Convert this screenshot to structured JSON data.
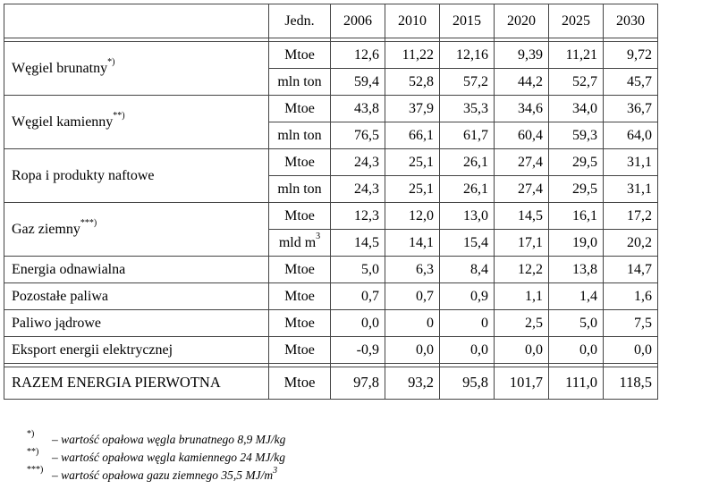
{
  "header": {
    "unit": "Jedn.",
    "years": [
      "2006",
      "2010",
      "2015",
      "2020",
      "2025",
      "2030"
    ]
  },
  "rows": [
    {
      "label": "Węgiel brunatny",
      "mark": "*)",
      "units": [
        {
          "unit": "Mtoe",
          "sup": "",
          "values": [
            "12,6",
            "11,22",
            "12,16",
            "9,39",
            "11,21",
            "9,72"
          ]
        },
        {
          "unit": "mln ton",
          "sup": "",
          "values": [
            "59,4",
            "52,8",
            "57,2",
            "44,2",
            "52,7",
            "45,7"
          ]
        }
      ]
    },
    {
      "label": "Węgiel kamienny",
      "mark": "**)",
      "units": [
        {
          "unit": "Mtoe",
          "sup": "",
          "values": [
            "43,8",
            "37,9",
            "35,3",
            "34,6",
            "34,0",
            "36,7"
          ]
        },
        {
          "unit": "mln ton",
          "sup": "",
          "values": [
            "76,5",
            "66,1",
            "61,7",
            "60,4",
            "59,3",
            "64,0"
          ]
        }
      ]
    },
    {
      "label": "Ropa i produkty naftowe",
      "mark": "",
      "units": [
        {
          "unit": "Mtoe",
          "sup": "",
          "values": [
            "24,3",
            "25,1",
            "26,1",
            "27,4",
            "29,5",
            "31,1"
          ]
        },
        {
          "unit": "mln ton",
          "sup": "",
          "values": [
            "24,3",
            "25,1",
            "26,1",
            "27,4",
            "29,5",
            "31,1"
          ]
        }
      ]
    },
    {
      "label": "Gaz ziemny",
      "mark": "***)",
      "units": [
        {
          "unit": "Mtoe",
          "sup": "",
          "values": [
            "12,3",
            "12,0",
            "13,0",
            "14,5",
            "16,1",
            "17,2"
          ]
        },
        {
          "unit": "mld m",
          "sup": "3",
          "values": [
            "14,5",
            "14,1",
            "15,4",
            "17,1",
            "19,0",
            "20,2"
          ]
        }
      ]
    },
    {
      "label": "Energia odnawialna",
      "mark": "",
      "units": [
        {
          "unit": "Mtoe",
          "sup": "",
          "values": [
            "5,0",
            "6,3",
            "8,4",
            "12,2",
            "13,8",
            "14,7"
          ]
        }
      ]
    },
    {
      "label": "Pozostałe paliwa",
      "mark": "",
      "units": [
        {
          "unit": "Mtoe",
          "sup": "",
          "values": [
            "0,7",
            "0,7",
            "0,9",
            "1,1",
            "1,4",
            "1,6"
          ]
        }
      ]
    },
    {
      "label": "Paliwo jądrowe",
      "mark": "",
      "units": [
        {
          "unit": "Mtoe",
          "sup": "",
          "values": [
            "0,0",
            "0",
            "0",
            "2,5",
            "5,0",
            "7,5"
          ]
        }
      ]
    },
    {
      "label": "Eksport energii elektrycznej",
      "mark": "",
      "units": [
        {
          "unit": "Mtoe",
          "sup": "",
          "values": [
            "-0,9",
            "0,0",
            "0,0",
            "0,0",
            "0,0",
            "0,0"
          ]
        }
      ]
    }
  ],
  "total": {
    "label": "RAZEM ENERGIA PIERWOTNA",
    "unit": "Mtoe",
    "values": [
      "97,8",
      "93,2",
      "95,8",
      "101,7",
      "111,0",
      "118,5"
    ]
  },
  "footnotes": [
    {
      "mark": "*)",
      "text": "– wartość opałowa węgla brunatnego 8,9 MJ/kg",
      "sup": ""
    },
    {
      "mark": "**)",
      "text": "– wartość opałowa węgla kamiennego 24 MJ/kg",
      "sup": ""
    },
    {
      "mark": "***)",
      "text": "– wartość opałowa gazu ziemnego 35,5 MJ/m",
      "sup": "3"
    }
  ]
}
